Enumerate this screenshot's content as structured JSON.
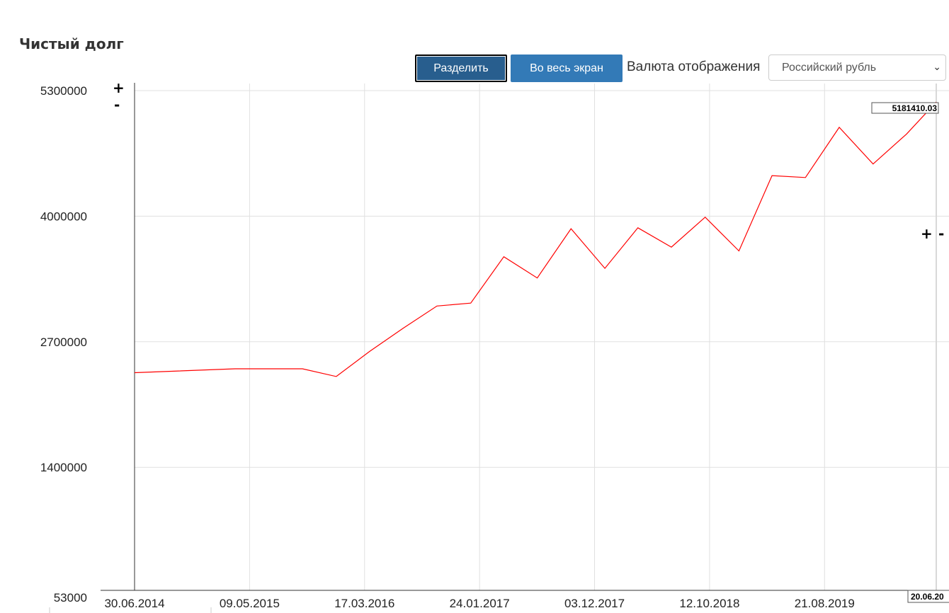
{
  "title": "Чистый долг",
  "toolbar": {
    "split_label": "Разделить",
    "fullscreen_label": "Во весь экран",
    "currency_label": "Валюта отображения",
    "currency_value": "Российский рубль"
  },
  "zoom": {
    "plus": "+",
    "minus": "-"
  },
  "colors": {
    "line": "#ff0000",
    "button": "#337ab7",
    "button_active": "#285e8e"
  },
  "chart_data": {
    "type": "line",
    "title": "",
    "xlabel": "",
    "ylabel": "",
    "ylim": [
      53000,
      5300000
    ],
    "yticks": [
      {
        "value": 53000,
        "label": "53000"
      },
      {
        "value": 1400000,
        "label": "1400000"
      },
      {
        "value": 2700000,
        "label": "2700000"
      },
      {
        "value": 4000000,
        "label": "4000000"
      },
      {
        "value": 5300000,
        "label": "5300000"
      }
    ],
    "xlim": [
      "2014-06-30",
      "2020-06-20"
    ],
    "xticks": [
      {
        "date": "2014-06-30",
        "label": "30.06.2014"
      },
      {
        "date": "2015-05-09",
        "label": "09.05.2015"
      },
      {
        "date": "2016-03-17",
        "label": "17.03.2016"
      },
      {
        "date": "2017-01-24",
        "label": "24.01.2017"
      },
      {
        "date": "2017-12-03",
        "label": "03.12.2017"
      },
      {
        "date": "2018-10-12",
        "label": "12.10.2018"
      },
      {
        "date": "2019-08-21",
        "label": "21.08.2019"
      }
    ],
    "grid": true,
    "cursor": {
      "date": "2020-06-20",
      "value_label": "5181410.03",
      "date_label": "20.06.20"
    },
    "series": [
      {
        "color": "#ff0000",
        "points": [
          {
            "x": "2014-06-30",
            "y": 2380000
          },
          {
            "x": "2015-03-31",
            "y": 2420000
          },
          {
            "x": "2015-06-30",
            "y": 2420000
          },
          {
            "x": "2015-09-30",
            "y": 2420000
          },
          {
            "x": "2015-12-31",
            "y": 2340000
          },
          {
            "x": "2016-03-31",
            "y": 2600000
          },
          {
            "x": "2016-06-30",
            "y": 2840000
          },
          {
            "x": "2016-09-30",
            "y": 3070000
          },
          {
            "x": "2016-12-31",
            "y": 3100000
          },
          {
            "x": "2017-03-31",
            "y": 3580000
          },
          {
            "x": "2017-06-30",
            "y": 3360000
          },
          {
            "x": "2017-09-30",
            "y": 3870000
          },
          {
            "x": "2017-12-31",
            "y": 3460000
          },
          {
            "x": "2018-03-31",
            "y": 3880000
          },
          {
            "x": "2018-06-30",
            "y": 3680000
          },
          {
            "x": "2018-09-30",
            "y": 3990000
          },
          {
            "x": "2018-12-31",
            "y": 3640000
          },
          {
            "x": "2019-03-31",
            "y": 4420000
          },
          {
            "x": "2019-06-30",
            "y": 4400000
          },
          {
            "x": "2019-09-30",
            "y": 4920000
          },
          {
            "x": "2019-12-31",
            "y": 4540000
          },
          {
            "x": "2020-03-31",
            "y": 4850000
          },
          {
            "x": "2020-06-20",
            "y": 5181410.03
          }
        ]
      }
    ]
  }
}
